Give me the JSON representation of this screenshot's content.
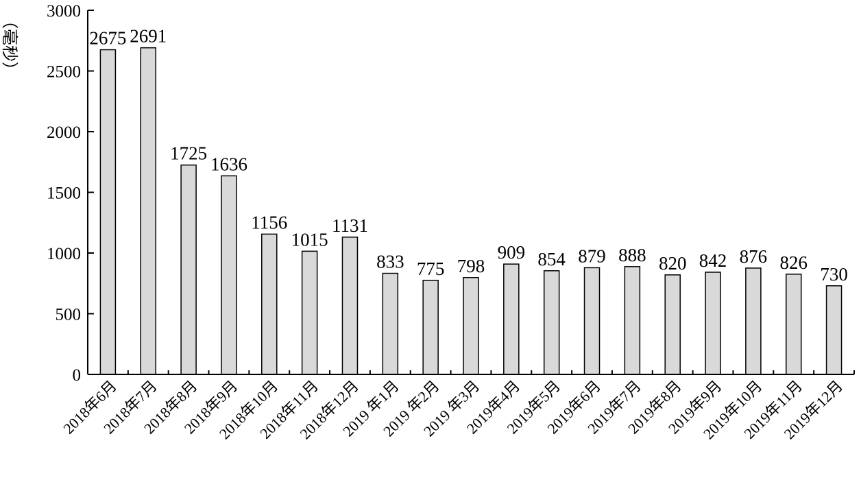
{
  "chart_data": {
    "type": "bar",
    "categories": [
      "2018年6月",
      "2018年7月",
      "2018年8月",
      "2018年9月",
      "2018年10月",
      "2018年11月",
      "2018年12月",
      "2019 年1月",
      "2019 年2月",
      "2019 年3月",
      "2019年4月",
      "2019年5月",
      "2019年6月",
      "2019年7月",
      "2019年8月",
      "2019年9月",
      "2019年10月",
      "2019年11月",
      "2019年12月"
    ],
    "values": [
      2675,
      2691,
      1725,
      1636,
      1156,
      1015,
      1131,
      833,
      775,
      798,
      909,
      854,
      879,
      888,
      820,
      842,
      876,
      826,
      730
    ],
    "value_labels": [
      "2675",
      "2691",
      "1725",
      "1636",
      "1156",
      "1015",
      "1131",
      "833",
      "775",
      "798",
      "909",
      "854",
      "879",
      "888",
      "820",
      "842",
      "876",
      "826",
      "730"
    ],
    "title": "",
    "xlabel": "",
    "ylabel": "（毫秒）",
    "ylim": [
      0,
      3000
    ],
    "yticks": [
      0,
      500,
      1000,
      1500,
      2000,
      2500,
      3000
    ],
    "ytick_labels": [
      "0",
      "500",
      "1000",
      "1500",
      "2000",
      "2500",
      "3000"
    ],
    "grid": false,
    "bar_color": "#d9d9d9"
  }
}
